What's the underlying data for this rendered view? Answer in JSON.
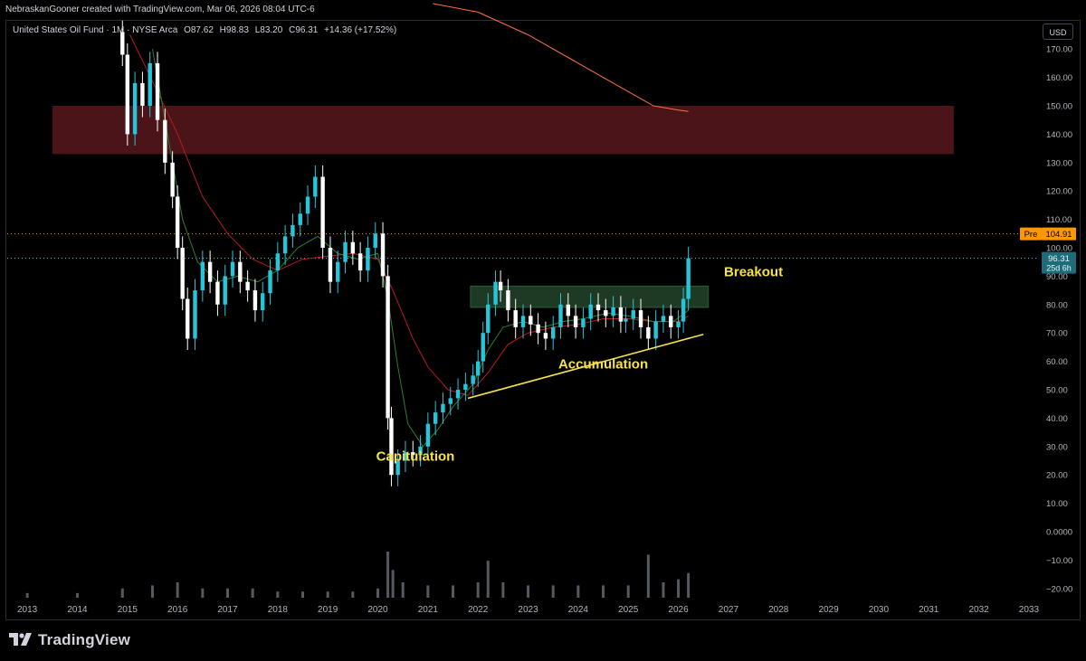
{
  "header": {
    "credit": "NebraskanGooner created with TradingView.com, Mar 06, 2026 08:04 UTC-6"
  },
  "legend": {
    "symbol": "United States Oil Fund · 1M · NYSE Arca",
    "open_label": "O",
    "open": "87.62",
    "high_label": "H",
    "high": "98.83",
    "low_label": "L",
    "low": "83.20",
    "close_label": "C",
    "close": "96.31",
    "change": "+14.36 (+17.52%)"
  },
  "currency": "USD",
  "footer": {
    "brand": "TradingView"
  },
  "colors": {
    "up": "#26c6da",
    "down": "#ffffff",
    "resistance_zone": "#4a1418",
    "breakout_zone": "#1f3a24",
    "trendline": "#f5e14b",
    "ma_fast": "#2e7d32",
    "ma_slow": "#b71c1c",
    "ma_long": "#ff7043",
    "pre_badge": "#ff9800",
    "price_badge": "#1e6c7a"
  },
  "chart_data": {
    "type": "candlestick",
    "price_axis": {
      "ticks": [
        "170.00",
        "160.00",
        "150.00",
        "140.00",
        "130.00",
        "120.00",
        "110.00",
        "100.00",
        "90.00",
        "80.00",
        "70.00",
        "60.00",
        "50.00",
        "40.00",
        "30.00",
        "20.00",
        "10.00",
        "0.0000",
        "−10.00",
        "−20.00"
      ],
      "ylim": [
        -23,
        178
      ]
    },
    "time_axis": {
      "ticks": [
        "2013",
        "2014",
        "2015",
        "2016",
        "2017",
        "2018",
        "2019",
        "2020",
        "2021",
        "2022",
        "2023",
        "2024",
        "2025",
        "2026",
        "2027",
        "2028",
        "2029",
        "2030",
        "2031",
        "2032",
        "2033"
      ],
      "xlim": [
        2012.6,
        2033.2
      ]
    },
    "markers": [
      {
        "label": "Pre",
        "value": "104.91"
      },
      {
        "label": "",
        "value": "96.31",
        "sub": "25d 6h"
      }
    ],
    "zones": [
      {
        "name": "resistance",
        "x": [
          2013.5,
          2031.5
        ],
        "y": [
          133,
          150
        ]
      },
      {
        "name": "breakout",
        "x": [
          2021.85,
          2026.6
        ],
        "y": [
          79,
          86.5
        ]
      }
    ],
    "annotations": [
      {
        "text": "Breakout",
        "x": 2027.5,
        "y": 90
      },
      {
        "text": "Accumulation",
        "x": 2024.5,
        "y": 57.5
      },
      {
        "text": "Capitulation",
        "x": 2020.75,
        "y": 25
      }
    ],
    "trendline": {
      "from": [
        2021.8,
        47
      ],
      "to": [
        2026.5,
        69.5
      ]
    },
    "series": [
      {
        "name": "Close",
        "points": [
          [
            2014.9,
            168
          ],
          [
            2015.0,
            140
          ],
          [
            2015.15,
            158
          ],
          [
            2015.3,
            150
          ],
          [
            2015.45,
            165
          ],
          [
            2015.6,
            145
          ],
          [
            2015.75,
            130
          ],
          [
            2015.9,
            118
          ],
          [
            2016.0,
            100
          ],
          [
            2016.1,
            82
          ],
          [
            2016.2,
            68
          ],
          [
            2016.35,
            85
          ],
          [
            2016.5,
            95
          ],
          [
            2016.65,
            88
          ],
          [
            2016.8,
            80
          ],
          [
            2016.95,
            90
          ],
          [
            2017.1,
            95
          ],
          [
            2017.25,
            88
          ],
          [
            2017.4,
            85
          ],
          [
            2017.55,
            78
          ],
          [
            2017.7,
            84
          ],
          [
            2017.85,
            92
          ],
          [
            2018.0,
            98
          ],
          [
            2018.15,
            104
          ],
          [
            2018.3,
            108
          ],
          [
            2018.45,
            112
          ],
          [
            2018.6,
            118
          ],
          [
            2018.75,
            125
          ],
          [
            2018.9,
            100
          ],
          [
            2019.05,
            88
          ],
          [
            2019.2,
            95
          ],
          [
            2019.35,
            102
          ],
          [
            2019.5,
            98
          ],
          [
            2019.65,
            92
          ],
          [
            2019.8,
            100
          ],
          [
            2019.95,
            105
          ],
          [
            2020.1,
            90
          ],
          [
            2020.2,
            40
          ],
          [
            2020.27,
            20
          ],
          [
            2020.4,
            25
          ],
          [
            2020.55,
            28
          ],
          [
            2020.7,
            27
          ],
          [
            2020.85,
            30
          ],
          [
            2021.0,
            38
          ],
          [
            2021.15,
            42
          ],
          [
            2021.3,
            45
          ],
          [
            2021.45,
            47
          ],
          [
            2021.6,
            50
          ],
          [
            2021.75,
            52
          ],
          [
            2021.9,
            55
          ],
          [
            2022.0,
            60
          ],
          [
            2022.1,
            70
          ],
          [
            2022.2,
            80
          ],
          [
            2022.35,
            88
          ],
          [
            2022.45,
            85
          ],
          [
            2022.6,
            78
          ],
          [
            2022.75,
            72
          ],
          [
            2022.9,
            76
          ],
          [
            2023.05,
            73
          ],
          [
            2023.2,
            70
          ],
          [
            2023.35,
            68
          ],
          [
            2023.5,
            72
          ],
          [
            2023.65,
            80
          ],
          [
            2023.8,
            76
          ],
          [
            2023.95,
            72
          ],
          [
            2024.1,
            75
          ],
          [
            2024.25,
            80
          ],
          [
            2024.4,
            78
          ],
          [
            2024.55,
            76
          ],
          [
            2024.7,
            79
          ],
          [
            2024.85,
            74
          ],
          [
            2024.95,
            75
          ],
          [
            2025.1,
            78
          ],
          [
            2025.25,
            72
          ],
          [
            2025.4,
            68
          ],
          [
            2025.55,
            74
          ],
          [
            2025.7,
            76
          ],
          [
            2025.85,
            72
          ],
          [
            2026.0,
            74
          ],
          [
            2026.1,
            82
          ],
          [
            2026.2,
            96.31
          ]
        ]
      },
      {
        "name": "Volume",
        "points": [
          [
            2013.0,
            1.5
          ],
          [
            2014.0,
            1.5
          ],
          [
            2014.9,
            3
          ],
          [
            2015.5,
            4
          ],
          [
            2016.0,
            5
          ],
          [
            2016.5,
            3
          ],
          [
            2017.0,
            3
          ],
          [
            2017.5,
            3
          ],
          [
            2018.0,
            2
          ],
          [
            2018.5,
            2
          ],
          [
            2019.0,
            2
          ],
          [
            2019.5,
            2
          ],
          [
            2020.0,
            3
          ],
          [
            2020.2,
            15
          ],
          [
            2020.3,
            9
          ],
          [
            2020.5,
            5
          ],
          [
            2021.0,
            4
          ],
          [
            2021.5,
            4
          ],
          [
            2022.0,
            5
          ],
          [
            2022.2,
            12
          ],
          [
            2022.5,
            5
          ],
          [
            2023.0,
            4
          ],
          [
            2023.5,
            4
          ],
          [
            2024.0,
            4
          ],
          [
            2024.5,
            4
          ],
          [
            2025.0,
            4
          ],
          [
            2025.4,
            14
          ],
          [
            2025.7,
            5
          ],
          [
            2026.0,
            6
          ],
          [
            2026.2,
            8
          ]
        ]
      }
    ]
  }
}
